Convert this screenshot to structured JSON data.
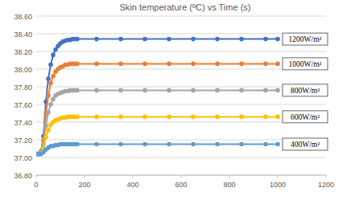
{
  "chart_data": {
    "type": "line",
    "title": "Skin temperature (ºC) vs Time (s)",
    "x": [
      0,
      10,
      20,
      30,
      40,
      50,
      60,
      70,
      80,
      90,
      100,
      110,
      120,
      130,
      140,
      150,
      160,
      170,
      250,
      350,
      450,
      550,
      650,
      750,
      850,
      950,
      1000
    ],
    "series": [
      {
        "name": "1200W/m²",
        "color": "#4472c4",
        "values": [
          37.04,
          37.04,
          37.07,
          37.24,
          37.63,
          37.89,
          38.05,
          38.16,
          38.22,
          38.26,
          38.29,
          38.31,
          38.32,
          38.33,
          38.33,
          38.34,
          38.34,
          38.34,
          38.34,
          38.34,
          38.34,
          38.34,
          38.34,
          38.34,
          38.34,
          38.34,
          38.34
        ]
      },
      {
        "name": "1000W/m²",
        "color": "#ed7d31",
        "values": [
          37.04,
          37.04,
          37.06,
          37.19,
          37.5,
          37.7,
          37.84,
          37.92,
          37.97,
          38.0,
          38.02,
          38.03,
          38.05,
          38.05,
          38.06,
          38.06,
          38.06,
          38.06,
          38.06,
          38.06,
          38.06,
          38.06,
          38.06,
          38.06,
          38.06,
          38.06,
          38.06
        ]
      },
      {
        "name": "800W/m²",
        "color": "#a5a5a5",
        "values": [
          37.04,
          37.04,
          37.05,
          37.15,
          37.36,
          37.51,
          37.6,
          37.66,
          37.7,
          37.72,
          37.73,
          37.74,
          37.75,
          37.75,
          37.76,
          37.76,
          37.76,
          37.76,
          37.76,
          37.76,
          37.76,
          37.76,
          37.76,
          37.76,
          37.76,
          37.76,
          37.76
        ]
      },
      {
        "name": "600W/m²",
        "color": "#ffc000",
        "values": [
          37.04,
          37.04,
          37.05,
          37.1,
          37.23,
          37.31,
          37.37,
          37.4,
          37.42,
          37.43,
          37.44,
          37.45,
          37.45,
          37.46,
          37.46,
          37.46,
          37.46,
          37.46,
          37.46,
          37.46,
          37.46,
          37.46,
          37.46,
          37.46,
          37.46,
          37.46,
          37.46
        ]
      },
      {
        "name": "400W/m²",
        "color": "#5b9bd5",
        "values": [
          37.04,
          37.04,
          37.04,
          37.06,
          37.09,
          37.11,
          37.13,
          37.13,
          37.14,
          37.14,
          37.15,
          37.15,
          37.15,
          37.15,
          37.15,
          37.15,
          37.15,
          37.15,
          37.15,
          37.15,
          37.15,
          37.15,
          37.15,
          37.15,
          37.15,
          37.15,
          37.15
        ]
      }
    ],
    "xlim": [
      0,
      1200
    ],
    "xticks": [
      0,
      200,
      400,
      600,
      800,
      1000,
      1200
    ],
    "ylim": [
      36.8,
      38.6
    ],
    "yticks": [
      {
        "value": 36.8,
        "label": "36.80"
      },
      {
        "value": 37.0,
        "label": "37.00"
      },
      {
        "value": 37.2,
        "label": "37.20"
      },
      {
        "value": 37.4,
        "label": "37.40"
      },
      {
        "value": 37.6,
        "label": "37.60"
      },
      {
        "value": 37.8,
        "label": "37.80"
      },
      {
        "value": 38.0,
        "label": "38.00"
      },
      {
        "value": 38.2,
        "label": "38.20"
      },
      {
        "value": 38.4,
        "label": "38.40"
      },
      {
        "value": 38.6,
        "label": "38.60"
      }
    ],
    "grid": true,
    "marker": "circle"
  }
}
